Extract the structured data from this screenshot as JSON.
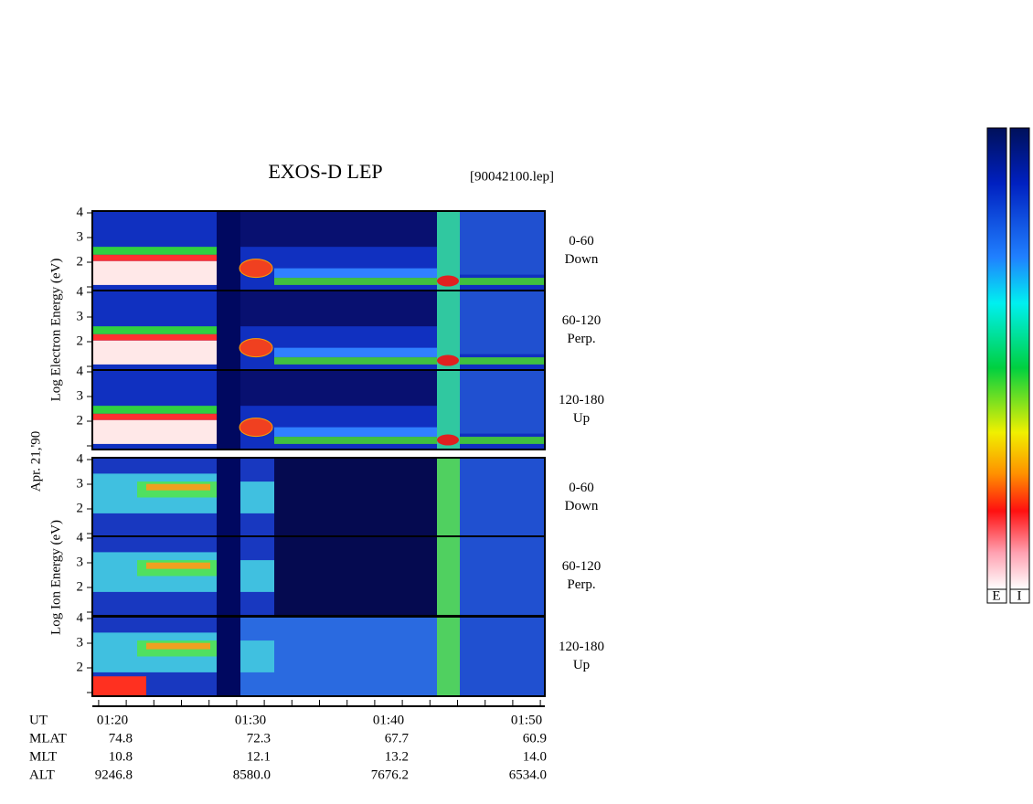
{
  "title": "EXOS-D LEP",
  "file": "[90042100.lep]",
  "date": "Apr. 21,'90",
  "electron_axis_label": "Log  Electron  Energy (eV)",
  "ion_axis_label": "Log  Ion  Energy (eV)",
  "energy_ticks": [
    4,
    3,
    2
  ],
  "panels": [
    {
      "range": "0-60",
      "direction": "Down"
    },
    {
      "range": "60-120",
      "direction": "Perp."
    },
    {
      "range": "120-180",
      "direction": "Up"
    },
    {
      "range": "0-60",
      "direction": "Down"
    },
    {
      "range": "60-120",
      "direction": "Perp."
    },
    {
      "range": "120-180",
      "direction": "Up"
    }
  ],
  "orbit": {
    "row_labels": [
      "UT",
      "MLAT",
      "MLT",
      "ALT"
    ],
    "times": [
      "01:20",
      "01:30",
      "01:40",
      "01:50"
    ],
    "rows": [
      [
        "74.8",
        "72.3",
        "67.7",
        "60.9"
      ],
      [
        "10.8",
        "12.1",
        "13.2",
        "14.0"
      ],
      [
        "9246.8",
        "8580.0",
        "7676.2",
        "6534.0"
      ]
    ]
  },
  "colorbar_labels": [
    "E",
    "I"
  ]
}
